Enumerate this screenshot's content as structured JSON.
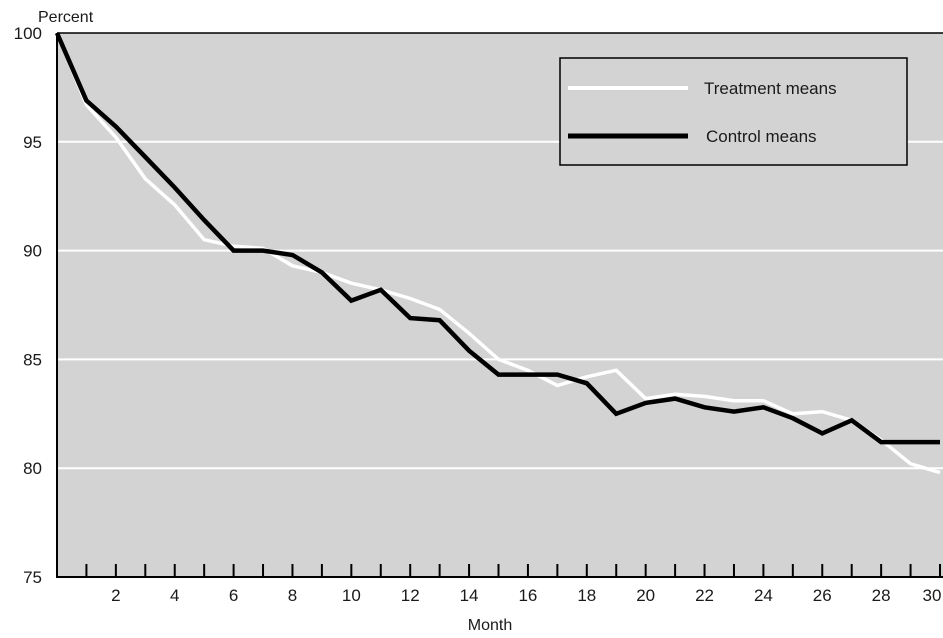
{
  "chart_data": {
    "type": "line",
    "title": "",
    "ylabel": "Percent",
    "xlabel": "Month",
    "xlim": [
      0,
      30
    ],
    "ylim": [
      75,
      100
    ],
    "x_ticks": [
      2,
      4,
      6,
      8,
      10,
      12,
      14,
      16,
      18,
      20,
      22,
      24,
      26,
      28,
      30
    ],
    "y_ticks": [
      75,
      80,
      85,
      90,
      95,
      100
    ],
    "grid": "horizontal",
    "legend_position": "top-right",
    "x": [
      0,
      1,
      2,
      3,
      4,
      5,
      6,
      7,
      8,
      9,
      10,
      11,
      12,
      13,
      14,
      15,
      16,
      17,
      18,
      19,
      20,
      21,
      22,
      23,
      24,
      25,
      26,
      27,
      28,
      29,
      30
    ],
    "series": [
      {
        "name": "Treatment means",
        "color": "#ffffff",
        "values": [
          100,
          96.7,
          95.2,
          93.3,
          92.1,
          90.5,
          90.2,
          90.1,
          89.3,
          89.0,
          88.5,
          88.2,
          87.8,
          87.3,
          86.2,
          85.0,
          84.5,
          83.8,
          84.2,
          84.5,
          83.2,
          83.4,
          83.3,
          83.1,
          83.1,
          82.5,
          82.6,
          82.2,
          81.3,
          80.2,
          79.8
        ]
      },
      {
        "name": "Control means",
        "color": "#000000",
        "values": [
          100,
          96.9,
          95.7,
          94.3,
          92.9,
          91.4,
          90.0,
          90.0,
          89.8,
          89.0,
          87.7,
          88.2,
          86.9,
          86.8,
          85.4,
          84.3,
          84.3,
          84.3,
          83.9,
          82.5,
          83.0,
          83.2,
          82.8,
          82.6,
          82.8,
          82.3,
          81.6,
          82.2,
          81.2,
          81.2,
          81.2
        ]
      }
    ]
  }
}
